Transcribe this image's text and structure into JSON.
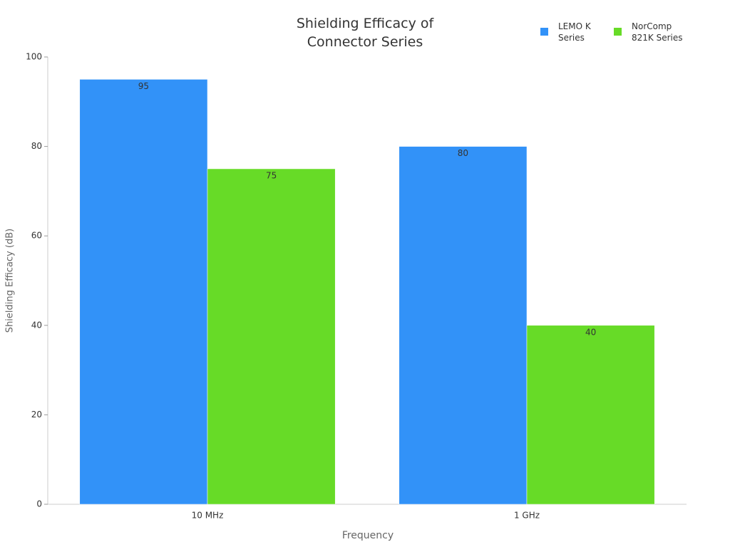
{
  "chart_data": {
    "type": "bar",
    "title": "Shielding Efficacy of Connector Series",
    "x_label": "Frequency",
    "y_label": "Shielding Efficacy (dB)",
    "categories": [
      "10 MHz",
      "1 GHz"
    ],
    "series": [
      {
        "name": "LEMO K Series",
        "color": "#3292f8",
        "values": [
          95,
          80
        ]
      },
      {
        "name": "NorComp 821K Series",
        "color": "#67db27",
        "values": [
          75,
          40
        ]
      }
    ],
    "ylim": [
      0,
      100
    ],
    "yticks": [
      0,
      20,
      40,
      60,
      80,
      100
    ],
    "grid": false,
    "legend": "top-right"
  }
}
